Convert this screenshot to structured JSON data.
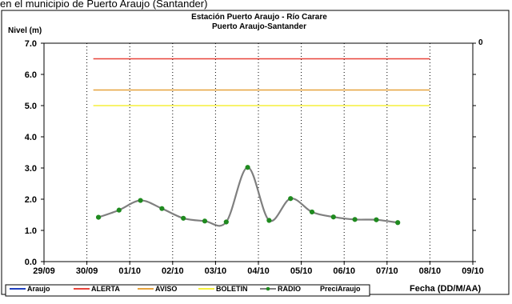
{
  "header_text": "en el municipio de Puerto Araujo (Santander)",
  "chart_data": {
    "type": "line",
    "title": "Estación Puerto Araujo - Río Carare",
    "subtitle": "Puerto Araujo-Santander",
    "ylabel": "Nivel (m)",
    "xlabel": "Fecha (DD/M/AA)",
    "ylim": [
      0,
      7
    ],
    "y_ticks": [
      "0.0",
      "1.0",
      "2.0",
      "3.0",
      "4.0",
      "5.0",
      "6.0",
      "7.0"
    ],
    "y2_tick": "0",
    "x_ticks": [
      "29/09",
      "30/09",
      "01/10",
      "02/10",
      "03/10",
      "04/10",
      "05/10",
      "06/10",
      "07/10",
      "08/10",
      "09/10"
    ],
    "x_range": [
      0,
      10
    ],
    "grid": "vertical dotted",
    "legend_position": "bottom",
    "thresholds": [
      {
        "name": "ALERTA",
        "y": 6.5,
        "x_start": 1.15,
        "x_end": 9.0,
        "color": "#e8443a"
      },
      {
        "name": "AVISO",
        "y": 5.5,
        "x_start": 1.15,
        "x_end": 9.0,
        "color": "#e6a23c"
      },
      {
        "name": "BOLETIN",
        "y": 5.0,
        "x_start": 1.15,
        "x_end": 9.0,
        "color": "#f5ef3c"
      }
    ],
    "series": [
      {
        "name": "RADIO",
        "color": "#7f7f7f",
        "marker_color": "#1f8a1f",
        "x": [
          1.27,
          1.75,
          2.25,
          2.75,
          3.25,
          3.75,
          4.25,
          4.75,
          5.25,
          5.75,
          6.25,
          6.75,
          7.25,
          7.75,
          8.25
        ],
        "y": [
          1.42,
          1.65,
          1.96,
          1.7,
          1.39,
          1.3,
          1.27,
          3.02,
          1.32,
          2.02,
          1.59,
          1.43,
          1.35,
          1.34,
          1.25
        ]
      }
    ],
    "legend": [
      {
        "label": "Araujo",
        "color": "#1f3fbf",
        "kind": "line"
      },
      {
        "label": "ALERTA",
        "color": "#e8443a",
        "kind": "line"
      },
      {
        "label": "AVISO",
        "color": "#e6a23c",
        "kind": "line"
      },
      {
        "label": "BOLETIN",
        "color": "#f5ef3c",
        "kind": "line"
      },
      {
        "label": "RADIO",
        "color": "#7f7f7f",
        "kind": "line-marker"
      },
      {
        "label": "PreciAraujo",
        "color": "",
        "kind": "none"
      }
    ]
  }
}
